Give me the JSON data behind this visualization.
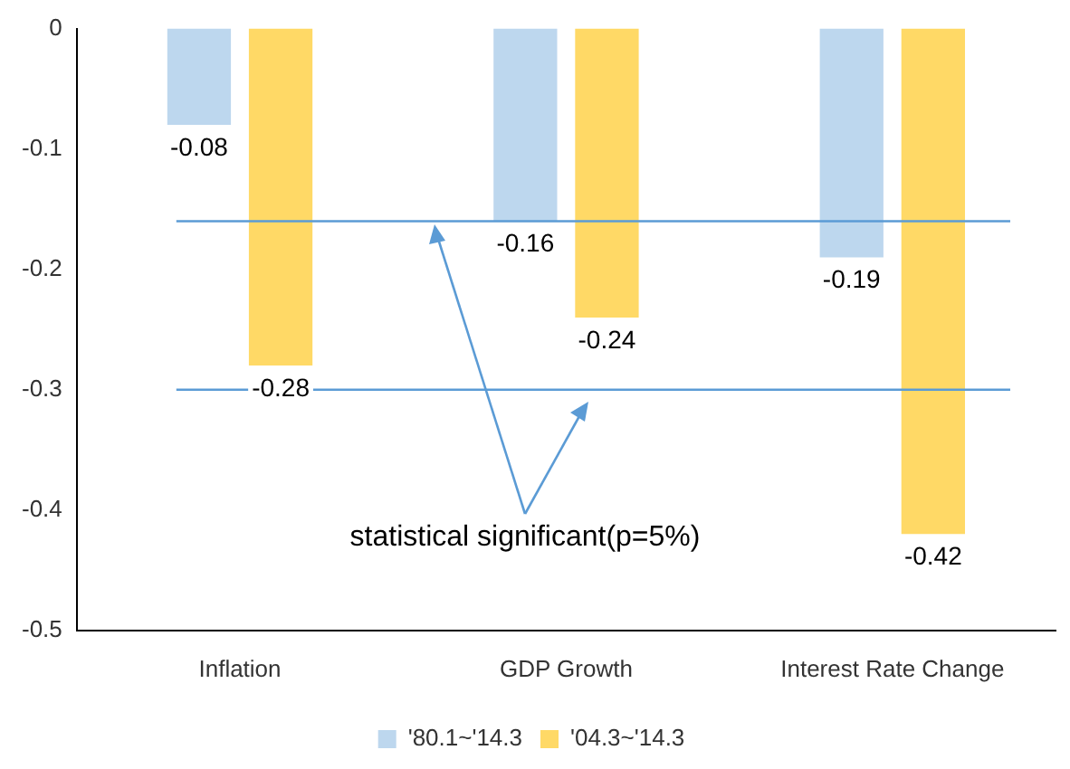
{
  "chart_data": {
    "type": "bar",
    "categories": [
      "Inflation",
      "GDP Growth",
      "Interest Rate Change"
    ],
    "series": [
      {
        "name": "'80.1~'14.3",
        "color": "#bdd7ee",
        "values": [
          -0.08,
          -0.16,
          -0.19
        ]
      },
      {
        "name": "'04.3~'14.3",
        "color": "#ffd966",
        "values": [
          -0.28,
          -0.24,
          -0.42
        ]
      }
    ],
    "ylim": [
      -0.5,
      0
    ],
    "yticks": [
      0,
      -0.1,
      -0.2,
      -0.3,
      -0.4,
      -0.5
    ],
    "grid": false,
    "legend": "bottom",
    "data_labels": true,
    "ref_lines": [
      {
        "axis": "y",
        "value": -0.16,
        "color": "#5b9bd5"
      },
      {
        "axis": "y",
        "value": -0.3,
        "color": "#5b9bd5"
      }
    ],
    "annotations": [
      "statistical significant(p=5%)"
    ]
  }
}
